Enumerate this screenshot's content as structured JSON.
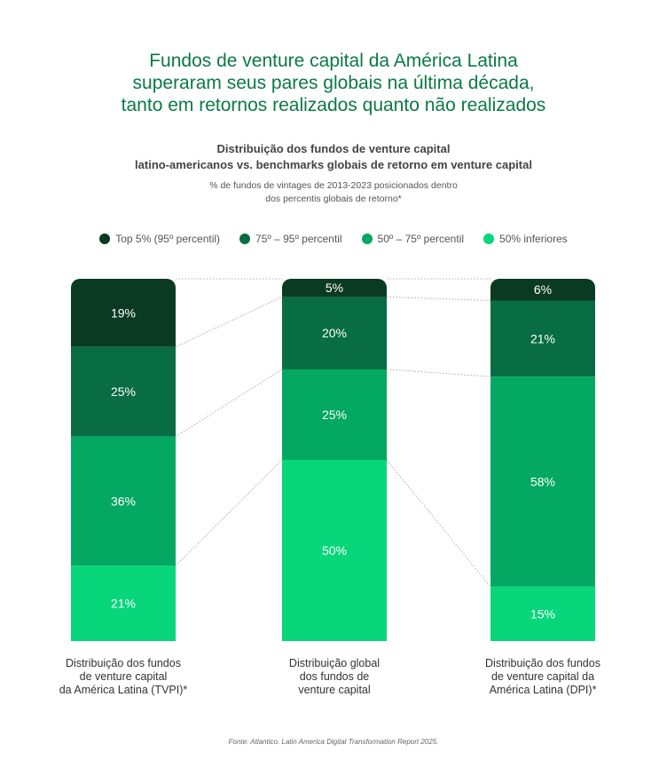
{
  "title": [
    "Fundos de venture capital da América Latina",
    "superaram seus pares globais na última década,",
    "tanto em retornos realizados quanto não realizados"
  ],
  "subtitle": [
    "Distribuição dos fundos de venture capital",
    "latino-americanos vs. benchmarks globais de retorno em venture capital"
  ],
  "note": [
    "% de fundos de vintages de 2013-2023 posicionados dentro",
    "dos percentis globais de retorno*"
  ],
  "source": "Fonte: Atlantico. Latin America Digital Transformation Report 2025.",
  "chart_data": {
    "type": "bar",
    "stacked": true,
    "categories": [
      [
        "Distribuição dos fundos",
        "de venture capital",
        "da América Latina (TVPI)*"
      ],
      [
        "Distribuição global",
        "dos fundos de",
        "venture capital"
      ],
      [
        "Distribuição dos fundos",
        "de venture capital da",
        "América Latina (DPI)*"
      ]
    ],
    "series": [
      {
        "name": "Top 5% (95º percentil)",
        "color": "#0b3a23",
        "values": [
          19,
          5,
          6
        ]
      },
      {
        "name": "75º – 95º percentil",
        "color": "#086c44",
        "values": [
          25,
          20,
          21
        ]
      },
      {
        "name": "50º – 75º percentil",
        "color": "#03a862",
        "values": [
          36,
          25,
          58
        ]
      },
      {
        "name": "50% inferiores",
        "color": "#07d67b",
        "values": [
          21,
          50,
          15
        ]
      }
    ],
    "unit": "%"
  }
}
